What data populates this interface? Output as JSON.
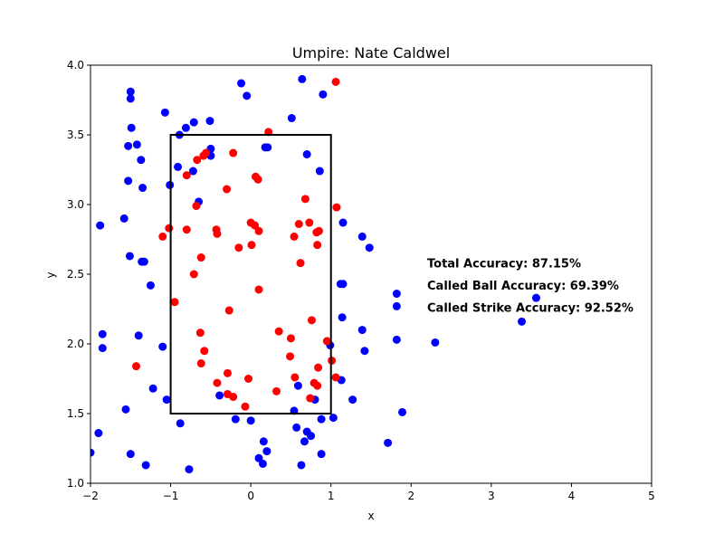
{
  "chart_data": {
    "type": "scatter",
    "title": "Umpire: Nate Caldwel",
    "xlabel": "x",
    "ylabel": "y",
    "xlim": [
      -2,
      5
    ],
    "ylim": [
      1.0,
      4.0
    ],
    "xticks": [
      "−2",
      "−1",
      "0",
      "1",
      "2",
      "3",
      "4",
      "5"
    ],
    "yticks": [
      "1.0",
      "1.5",
      "2.0",
      "2.5",
      "3.0",
      "3.5",
      "4.0"
    ],
    "grid": false,
    "strike_zone": {
      "x": [
        -1,
        1
      ],
      "y": [
        1.5,
        3.5
      ],
      "color": "#000000"
    },
    "annotations": [
      {
        "text": "Total Accuracy: 87.15%",
        "x": 2.2,
        "y": 2.55
      },
      {
        "text": "Called Ball Accuracy: 69.39%",
        "x": 2.2,
        "y": 2.39
      },
      {
        "text": "Called Strike Accuracy: 92.52%",
        "x": 2.2,
        "y": 2.23
      }
    ],
    "series": [
      {
        "color": "#0000ff",
        "points": [
          [
            -2.0,
            1.22
          ],
          [
            -1.9,
            1.36
          ],
          [
            -1.88,
            2.85
          ],
          [
            -1.85,
            2.07
          ],
          [
            -1.85,
            1.97
          ],
          [
            -1.58,
            2.9
          ],
          [
            -1.56,
            1.53
          ],
          [
            -1.53,
            3.17
          ],
          [
            -1.53,
            3.42
          ],
          [
            -1.51,
            2.63
          ],
          [
            -1.5,
            3.81
          ],
          [
            -1.5,
            3.76
          ],
          [
            -1.49,
            3.55
          ],
          [
            -1.5,
            1.21
          ],
          [
            -1.42,
            3.43
          ],
          [
            -1.4,
            2.06
          ],
          [
            -1.37,
            3.32
          ],
          [
            -1.36,
            2.59
          ],
          [
            -1.35,
            3.12
          ],
          [
            -1.33,
            2.59
          ],
          [
            -1.31,
            1.13
          ],
          [
            -1.25,
            2.42
          ],
          [
            -1.22,
            1.68
          ],
          [
            -1.1,
            1.98
          ],
          [
            -1.07,
            3.66
          ],
          [
            -1.05,
            1.6
          ],
          [
            -1.01,
            3.14
          ],
          [
            -0.91,
            3.27
          ],
          [
            -0.89,
            3.5
          ],
          [
            -0.88,
            1.43
          ],
          [
            -0.81,
            3.55
          ],
          [
            -0.77,
            1.1
          ],
          [
            -0.72,
            3.24
          ],
          [
            -0.71,
            3.59
          ],
          [
            -0.65,
            3.02
          ],
          [
            -0.51,
            3.6
          ],
          [
            -0.5,
            3.35
          ],
          [
            -0.5,
            3.4
          ],
          [
            -0.39,
            1.63
          ],
          [
            -0.19,
            1.46
          ],
          [
            -0.12,
            3.87
          ],
          [
            -0.05,
            3.78
          ],
          [
            0.0,
            1.45
          ],
          [
            0.1,
            1.18
          ],
          [
            0.15,
            1.14
          ],
          [
            0.16,
            1.3
          ],
          [
            0.18,
            3.41
          ],
          [
            0.2,
            1.23
          ],
          [
            0.21,
            3.41
          ],
          [
            0.51,
            3.62
          ],
          [
            0.54,
            1.52
          ],
          [
            0.57,
            1.4
          ],
          [
            0.59,
            1.7
          ],
          [
            0.63,
            1.13
          ],
          [
            0.64,
            3.9
          ],
          [
            0.67,
            1.3
          ],
          [
            0.7,
            1.37
          ],
          [
            0.7,
            3.36
          ],
          [
            0.75,
            1.34
          ],
          [
            0.8,
            1.6
          ],
          [
            0.86,
            3.24
          ],
          [
            0.88,
            1.46
          ],
          [
            0.88,
            1.21
          ],
          [
            0.9,
            3.79
          ],
          [
            0.99,
            1.99
          ],
          [
            1.03,
            1.47
          ],
          [
            1.12,
            2.43
          ],
          [
            1.13,
            1.74
          ],
          [
            1.14,
            2.19
          ],
          [
            1.15,
            2.87
          ],
          [
            1.15,
            2.43
          ],
          [
            1.27,
            1.6
          ],
          [
            1.39,
            2.77
          ],
          [
            1.39,
            2.1
          ],
          [
            1.42,
            1.95
          ],
          [
            1.48,
            2.69
          ],
          [
            1.71,
            1.29
          ],
          [
            1.82,
            2.36
          ],
          [
            1.82,
            2.27
          ],
          [
            1.82,
            2.03
          ],
          [
            1.89,
            1.51
          ],
          [
            2.3,
            2.01
          ],
          [
            3.38,
            2.16
          ],
          [
            3.56,
            2.33
          ]
        ]
      },
      {
        "color": "#ff0000",
        "points": [
          [
            -1.43,
            1.84
          ],
          [
            -1.1,
            2.77
          ],
          [
            -1.02,
            2.83
          ],
          [
            -0.95,
            2.3
          ],
          [
            -0.8,
            3.21
          ],
          [
            -0.8,
            2.82
          ],
          [
            -0.71,
            2.5
          ],
          [
            -0.68,
            2.99
          ],
          [
            -0.67,
            3.32
          ],
          [
            -0.63,
            2.08
          ],
          [
            -0.62,
            2.62
          ],
          [
            -0.62,
            1.86
          ],
          [
            -0.59,
            3.35
          ],
          [
            -0.58,
            1.95
          ],
          [
            -0.56,
            3.37
          ],
          [
            -0.43,
            2.82
          ],
          [
            -0.42,
            1.72
          ],
          [
            -0.42,
            2.79
          ],
          [
            -0.3,
            3.11
          ],
          [
            -0.29,
            1.64
          ],
          [
            -0.29,
            1.79
          ],
          [
            -0.27,
            2.24
          ],
          [
            -0.22,
            1.62
          ],
          [
            -0.22,
            3.37
          ],
          [
            -0.15,
            2.69
          ],
          [
            -0.07,
            1.55
          ],
          [
            -0.03,
            1.75
          ],
          [
            0.0,
            2.87
          ],
          [
            0.01,
            2.71
          ],
          [
            0.05,
            2.85
          ],
          [
            0.06,
            3.2
          ],
          [
            0.09,
            3.18
          ],
          [
            0.1,
            2.81
          ],
          [
            0.1,
            2.39
          ],
          [
            0.22,
            3.52
          ],
          [
            0.32,
            1.66
          ],
          [
            0.35,
            2.09
          ],
          [
            0.49,
            1.91
          ],
          [
            0.5,
            2.04
          ],
          [
            0.54,
            2.77
          ],
          [
            0.55,
            1.76
          ],
          [
            0.6,
            2.86
          ],
          [
            0.62,
            2.58
          ],
          [
            0.68,
            3.04
          ],
          [
            0.73,
            2.87
          ],
          [
            0.74,
            1.61
          ],
          [
            0.76,
            2.17
          ],
          [
            0.79,
            1.72
          ],
          [
            0.83,
            1.7
          ],
          [
            0.82,
            2.8
          ],
          [
            0.83,
            2.71
          ],
          [
            0.84,
            1.83
          ],
          [
            0.85,
            2.81
          ],
          [
            0.95,
            2.02
          ],
          [
            1.01,
            1.88
          ],
          [
            1.06,
            1.76
          ],
          [
            1.07,
            2.98
          ],
          [
            1.06,
            3.88
          ]
        ]
      }
    ]
  }
}
